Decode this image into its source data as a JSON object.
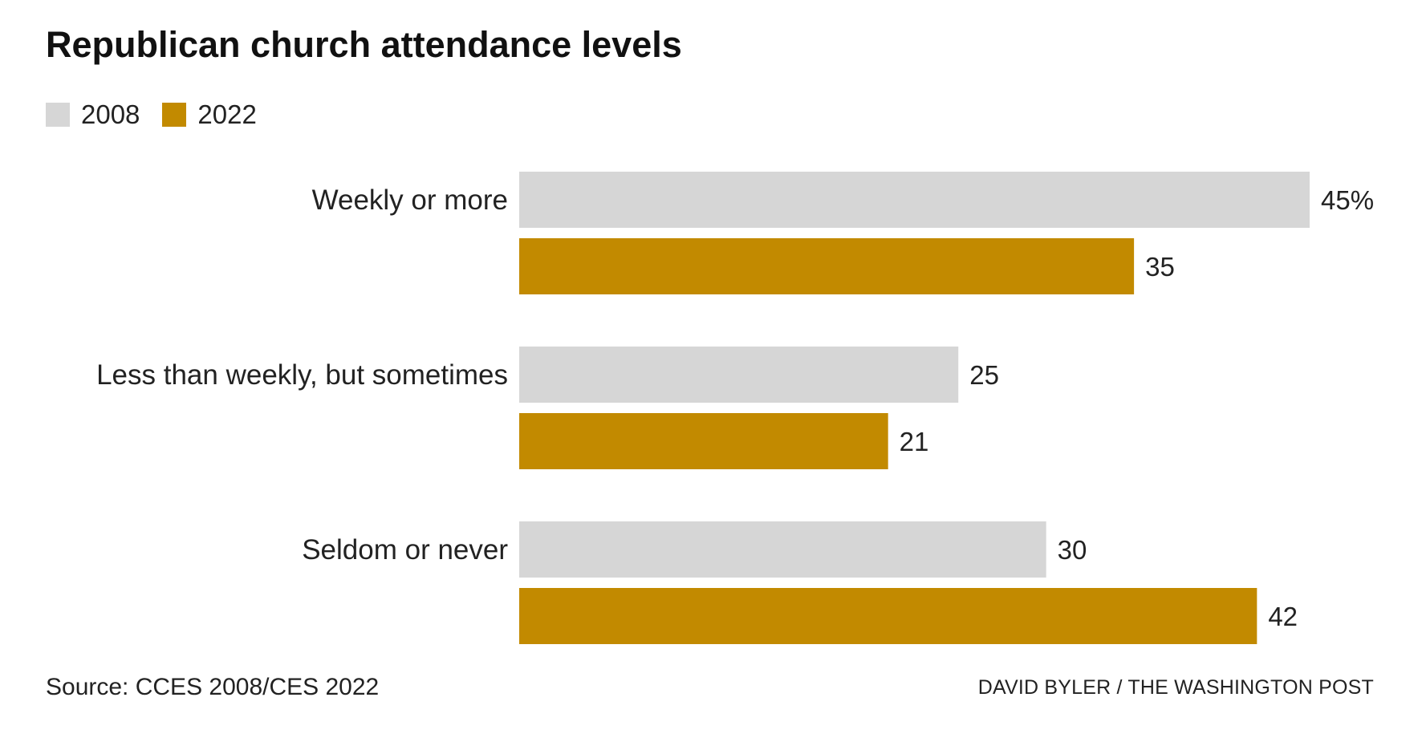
{
  "title": "Republican church attendance levels",
  "legend": [
    {
      "label": "2008",
      "color": "#d6d6d6"
    },
    {
      "label": "2022",
      "color": "#c28a00"
    }
  ],
  "chart_data": {
    "type": "bar",
    "orientation": "horizontal",
    "title": "Republican church attendance levels",
    "categories": [
      "Weekly or more",
      "Less than weekly, but sometimes",
      "Seldom or never"
    ],
    "series": [
      {
        "name": "2008",
        "color": "#d6d6d6",
        "values": [
          45,
          25,
          30
        ],
        "labels": [
          "45%",
          "25",
          "30"
        ]
      },
      {
        "name": "2022",
        "color": "#c28a00",
        "values": [
          35,
          21,
          42
        ],
        "labels": [
          "35",
          "21",
          "42"
        ]
      }
    ],
    "xlim": [
      0,
      45
    ],
    "grid": false,
    "legend_position": "top-left"
  },
  "footer": {
    "source": "Source: CCES 2008/CES 2022",
    "credit": "DAVID BYLER / THE WASHINGTON POST"
  }
}
